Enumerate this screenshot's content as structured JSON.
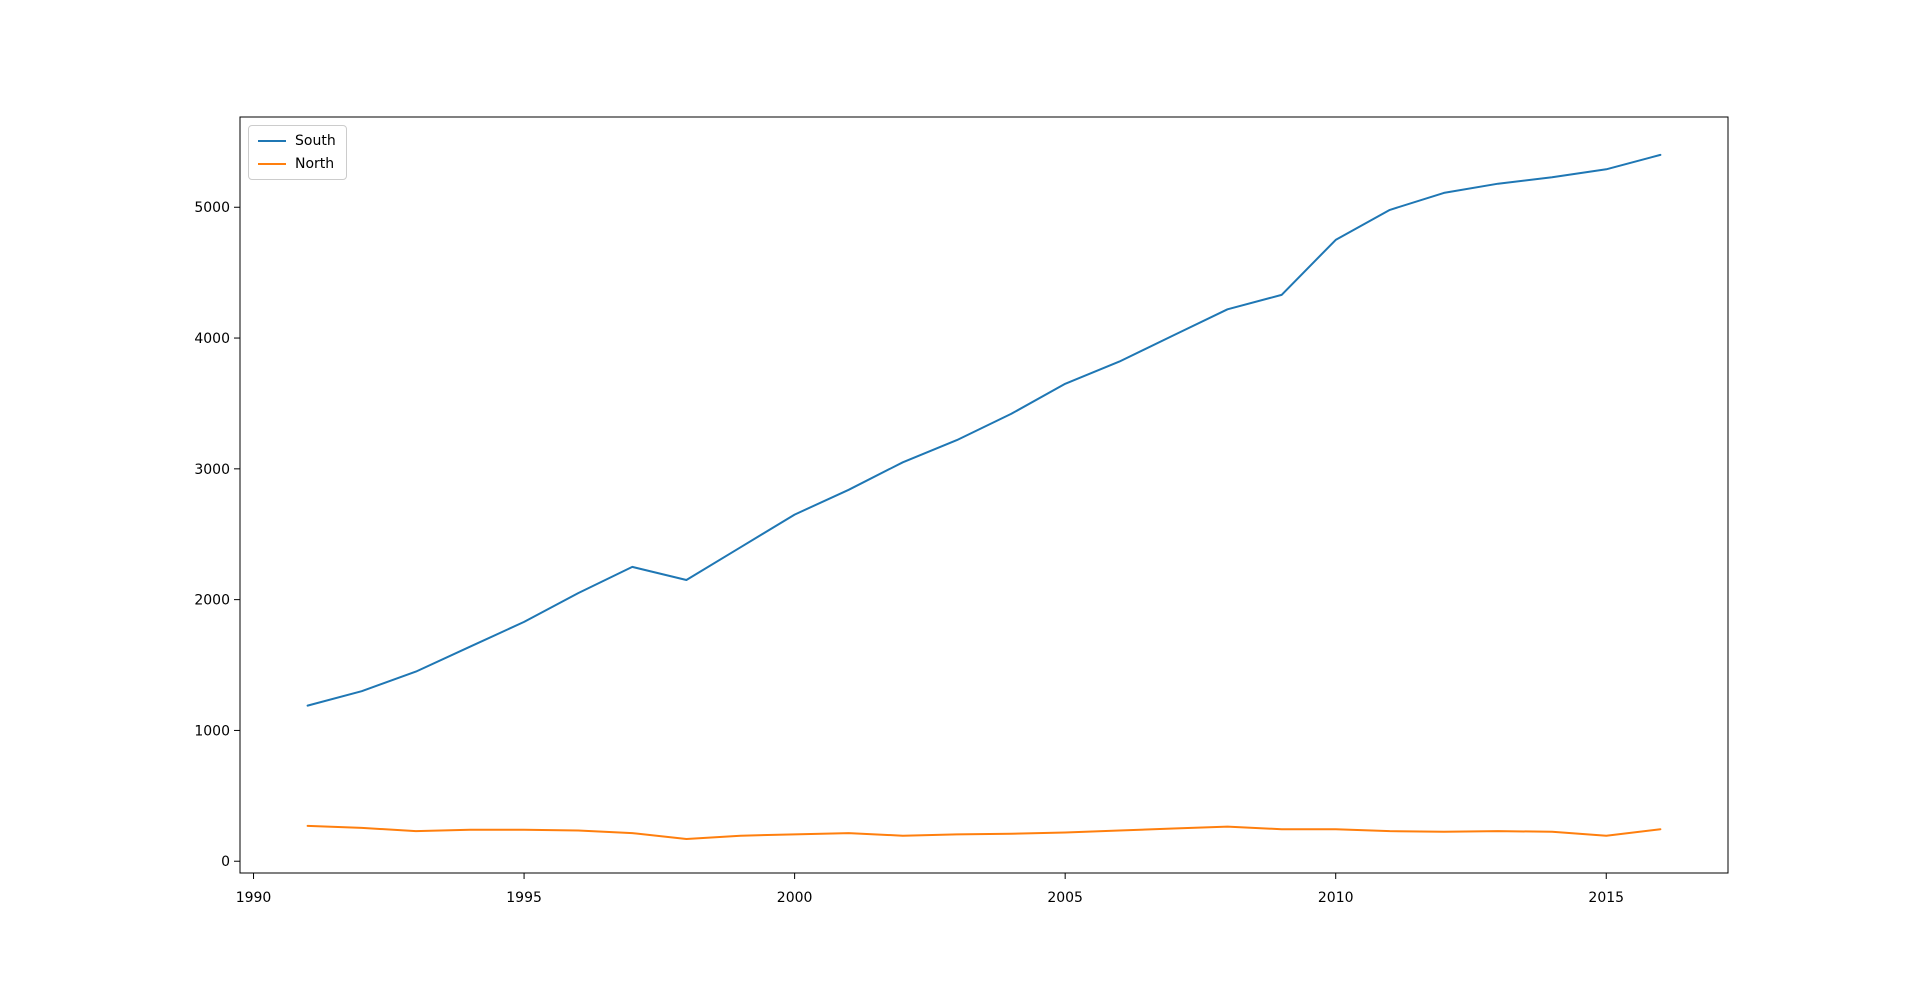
{
  "figure": {
    "background": "#ffffff",
    "spine_color": "#000000",
    "tick_color": "#000000",
    "tick_label_color": "#000000"
  },
  "legend": {
    "position": "upper-left",
    "entries": [
      {
        "label": "South",
        "color": "#1f77b4"
      },
      {
        "label": "North",
        "color": "#ff7f0e"
      }
    ]
  },
  "chart_data": {
    "type": "line",
    "title": "",
    "xlabel": "",
    "ylabel": "",
    "x": [
      1991,
      1992,
      1993,
      1994,
      1995,
      1996,
      1997,
      1998,
      1999,
      2000,
      2001,
      2002,
      2003,
      2004,
      2005,
      2006,
      2007,
      2008,
      2009,
      2010,
      2011,
      2012,
      2013,
      2014,
      2015,
      2016
    ],
    "series": [
      {
        "name": "South",
        "color": "#1f77b4",
        "values": [
          1190,
          1300,
          1450,
          1640,
          1830,
          2050,
          2250,
          2150,
          2400,
          2650,
          2840,
          3050,
          3220,
          3420,
          3650,
          3820,
          4020,
          4220,
          4330,
          4750,
          4980,
          5110,
          5180,
          5230,
          5290,
          5400
        ]
      },
      {
        "name": "North",
        "color": "#ff7f0e",
        "values": [
          270,
          255,
          230,
          240,
          240,
          235,
          215,
          170,
          195,
          205,
          215,
          195,
          205,
          210,
          220,
          235,
          250,
          265,
          245,
          245,
          230,
          225,
          230,
          225,
          195,
          245
        ]
      }
    ],
    "xlim": [
      1989.75,
      2017.25
    ],
    "ylim": [
      -90,
      5690
    ],
    "xticks": [
      1990,
      1995,
      2000,
      2005,
      2010,
      2015
    ],
    "yticks": [
      0,
      1000,
      2000,
      3000,
      4000,
      5000
    ],
    "grid": false,
    "legend_position": "upper left",
    "line_width": 2
  }
}
